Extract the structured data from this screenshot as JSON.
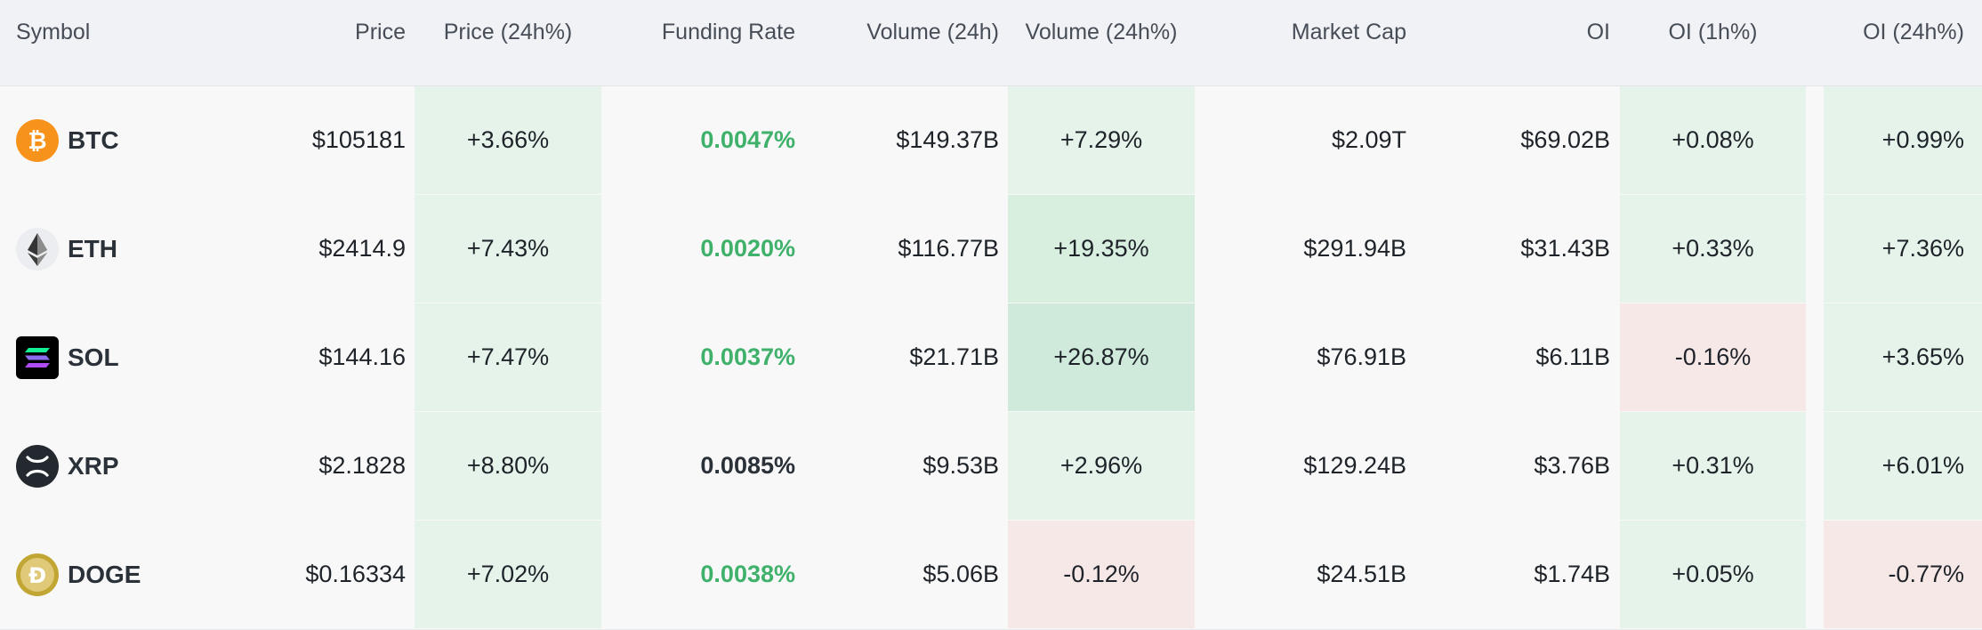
{
  "headers": {
    "symbol": "Symbol",
    "price": "Price",
    "price_24h": "Price (24h%)",
    "funding_rate": "Funding Rate",
    "volume_24h": "Volume (24h)",
    "volume_24h_pct": "Volume (24h%)",
    "market_cap": "Market Cap",
    "oi": "OI",
    "oi_1h": "OI (1h%)",
    "oi_24h": "OI (24h%)"
  },
  "rows": [
    {
      "symbol": "BTC",
      "icon": "bitcoin-icon",
      "price": "$105181",
      "price_24h": "+3.66%",
      "funding": "0.0047%",
      "volume": "$149.37B",
      "volume_pct": "+7.29%",
      "mcap": "$2.09T",
      "oi": "$69.02B",
      "oi_1h": "+0.08%",
      "oi_24h": "+0.99%"
    },
    {
      "symbol": "ETH",
      "icon": "ethereum-icon",
      "price": "$2414.9",
      "price_24h": "+7.43%",
      "funding": "0.0020%",
      "volume": "$116.77B",
      "volume_pct": "+19.35%",
      "mcap": "$291.94B",
      "oi": "$31.43B",
      "oi_1h": "+0.33%",
      "oi_24h": "+7.36%"
    },
    {
      "symbol": "SOL",
      "icon": "solana-icon",
      "price": "$144.16",
      "price_24h": "+7.47%",
      "funding": "0.0037%",
      "volume": "$21.71B",
      "volume_pct": "+26.87%",
      "mcap": "$76.91B",
      "oi": "$6.11B",
      "oi_1h": "-0.16%",
      "oi_24h": "+3.65%"
    },
    {
      "symbol": "XRP",
      "icon": "xrp-icon",
      "price": "$2.1828",
      "price_24h": "+8.80%",
      "funding": "0.0085%",
      "volume": "$9.53B",
      "volume_pct": "+2.96%",
      "mcap": "$129.24B",
      "oi": "$3.76B",
      "oi_1h": "+0.31%",
      "oi_24h": "+6.01%"
    },
    {
      "symbol": "DOGE",
      "icon": "dogecoin-icon",
      "price": "$0.16334",
      "price_24h": "+7.02%",
      "funding": "0.0038%",
      "volume": "$5.06B",
      "volume_pct": "-0.12%",
      "mcap": "$24.51B",
      "oi": "$1.74B",
      "oi_1h": "+0.05%",
      "oi_24h": "-0.77%"
    }
  ],
  "colors": {
    "header_bg": "#f1f2f5",
    "positive_text": "#3fb16b",
    "positive_bg": "#e6f3ea",
    "negative_bg": "#f7e8e8",
    "btc": "#f7931a",
    "doge": "#c2a633"
  }
}
